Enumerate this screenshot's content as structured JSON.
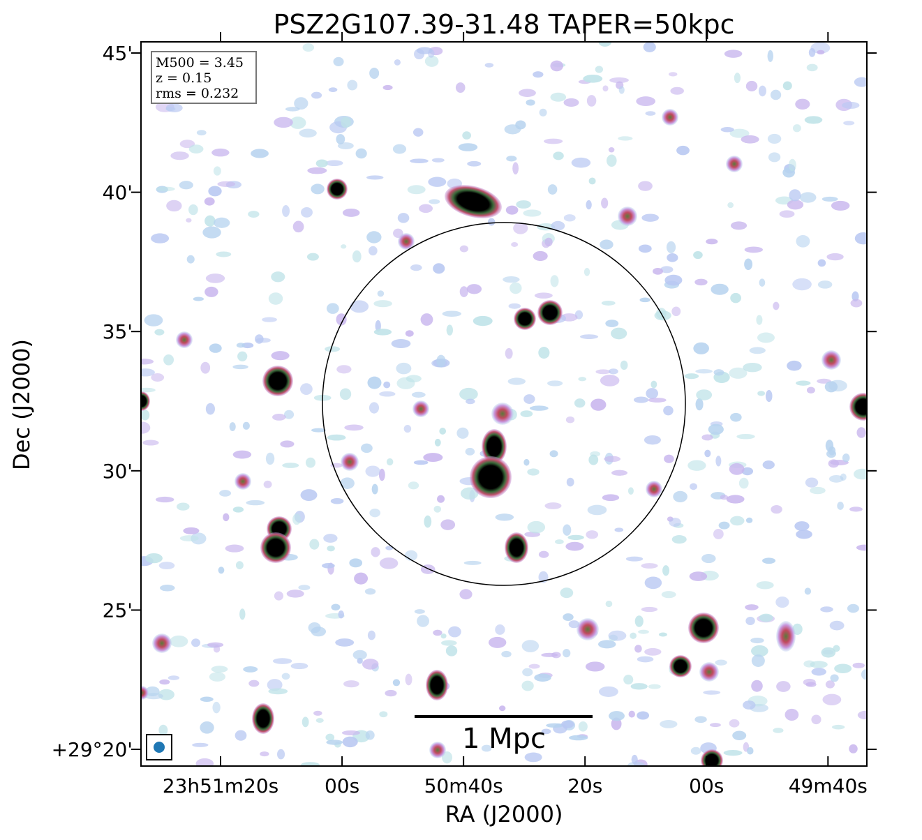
{
  "chart_data": {
    "type": "image",
    "title": "PSZ2G107.39-31.48 TAPER=50kpc",
    "xlabel": "RA (J2000)",
    "ylabel": "Dec (J2000)",
    "xlim": [
      153.1,
      33.6
    ],
    "ylim": [
      19.4,
      45.4
    ],
    "xticks": [
      {
        "value": 140,
        "label": "23h51m20s"
      },
      {
        "value": 120,
        "label": "00s"
      },
      {
        "value": 100,
        "label": "50m40s"
      },
      {
        "value": 80,
        "label": "20s"
      },
      {
        "value": 60,
        "label": "00s"
      },
      {
        "value": 40,
        "label": "49m40s"
      }
    ],
    "yticks": [
      {
        "value": 45,
        "label": "45'"
      },
      {
        "value": 40,
        "label": "40'"
      },
      {
        "value": 35,
        "label": "35'"
      },
      {
        "value": 30,
        "label": "30'"
      },
      {
        "value": 25,
        "label": "25'"
      },
      {
        "value": 20,
        "label": "+29°20'"
      }
    ],
    "annotations": [
      "M500 = 3.45",
      "z = 0.15",
      "rms = 0.232"
    ],
    "scale_bar_label": "1 Mpc"
  }
}
